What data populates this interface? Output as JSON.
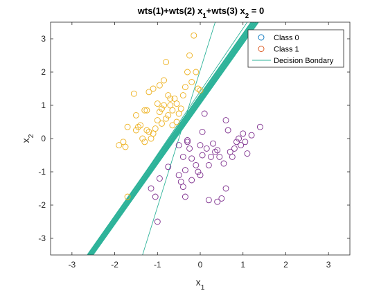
{
  "chart_data": {
    "type": "scatter",
    "title": "wts(1)+wts(2) x_1+wts(3) x_2 = 0",
    "xlabel": "x_1",
    "ylabel": "x_2",
    "xlim": [
      -3.5,
      3.5
    ],
    "ylim": [
      -3.5,
      3.5
    ],
    "xticks": [
      -3,
      -2,
      -1,
      0,
      1,
      2,
      3
    ],
    "yticks": [
      -3,
      -2,
      -1,
      0,
      1,
      2,
      3
    ],
    "grid": false,
    "legend_placement": "top-right",
    "legend": [
      "Class 0",
      "Class 1",
      "Decision Bondary"
    ],
    "legend_colors": [
      "#0072BD",
      "#D95319",
      "#2EB39A"
    ],
    "series": [
      {
        "name": "Class 0",
        "marker": "circle",
        "color": "#7E2F8E",
        "points": [
          [
            -0.75,
            -0.85
          ],
          [
            -0.95,
            -1.2
          ],
          [
            -1.15,
            -1.5
          ],
          [
            -1.05,
            -1.75
          ],
          [
            -1.0,
            -2.5
          ],
          [
            -0.5,
            -0.2
          ],
          [
            -0.4,
            -0.55
          ],
          [
            -0.35,
            -0.95
          ],
          [
            -0.5,
            -1.1
          ],
          [
            -0.45,
            -1.3
          ],
          [
            -0.4,
            -1.45
          ],
          [
            -0.35,
            -1.75
          ],
          [
            -0.3,
            -0.1
          ],
          [
            -0.25,
            -0.3
          ],
          [
            -0.2,
            -0.6
          ],
          [
            -0.1,
            -0.8
          ],
          [
            -0.05,
            -1.0
          ],
          [
            0.0,
            -1.1
          ],
          [
            0.0,
            -0.2
          ],
          [
            0.05,
            0.2
          ],
          [
            0.1,
            0.75
          ],
          [
            0.15,
            -0.3
          ],
          [
            0.2,
            -0.8
          ],
          [
            0.3,
            -0.15
          ],
          [
            0.35,
            -0.4
          ],
          [
            0.45,
            -0.55
          ],
          [
            0.55,
            -0.75
          ],
          [
            0.6,
            0.55
          ],
          [
            0.65,
            0.25
          ],
          [
            0.7,
            -0.4
          ],
          [
            0.75,
            -0.55
          ],
          [
            0.8,
            -0.3
          ],
          [
            0.85,
            -0.1
          ],
          [
            0.9,
            0.0
          ],
          [
            0.95,
            -0.2
          ],
          [
            1.0,
            0.15
          ],
          [
            1.05,
            -0.1
          ],
          [
            1.1,
            -0.45
          ],
          [
            1.2,
            0.1
          ],
          [
            1.4,
            0.35
          ],
          [
            0.2,
            -1.85
          ],
          [
            0.4,
            -1.9
          ],
          [
            0.5,
            -1.8
          ],
          [
            0.6,
            -1.5
          ],
          [
            -0.2,
            -1.25
          ],
          [
            0.05,
            -0.5
          ],
          [
            -0.3,
            -0.05
          ],
          [
            0.25,
            -0.55
          ],
          [
            0.4,
            -0.35
          ]
        ]
      },
      {
        "name": "Class 1",
        "marker": "circle",
        "color": "#EDB120",
        "points": [
          [
            -1.9,
            -0.2
          ],
          [
            -1.8,
            -0.1
          ],
          [
            -1.75,
            -0.25
          ],
          [
            -1.7,
            0.35
          ],
          [
            -1.5,
            0.25
          ],
          [
            -1.45,
            0.35
          ],
          [
            -1.4,
            0.4
          ],
          [
            -1.35,
            0.0
          ],
          [
            -1.3,
            -0.1
          ],
          [
            -1.25,
            0.25
          ],
          [
            -1.2,
            0.2
          ],
          [
            -1.15,
            0.0
          ],
          [
            -1.1,
            0.15
          ],
          [
            -1.05,
            0.3
          ],
          [
            -1.0,
            0.55
          ],
          [
            -0.95,
            0.8
          ],
          [
            -0.9,
            0.9
          ],
          [
            -0.85,
            1.0
          ],
          [
            -0.8,
            0.6
          ],
          [
            -0.75,
            1.3
          ],
          [
            -0.7,
            1.0
          ],
          [
            -0.65,
            0.85
          ],
          [
            -0.6,
            1.2
          ],
          [
            -0.5,
            0.75
          ],
          [
            -0.45,
            0.9
          ],
          [
            -0.4,
            1.3
          ],
          [
            -0.35,
            1.55
          ],
          [
            -0.3,
            2.0
          ],
          [
            -0.25,
            2.5
          ],
          [
            -0.2,
            1.7
          ],
          [
            -0.1,
            2.0
          ],
          [
            -0.05,
            1.5
          ],
          [
            0.0,
            1.45
          ],
          [
            -1.55,
            1.35
          ],
          [
            -1.5,
            0.7
          ],
          [
            -1.2,
            1.4
          ],
          [
            -1.1,
            1.5
          ],
          [
            -0.95,
            1.6
          ],
          [
            -0.85,
            1.75
          ],
          [
            -0.8,
            2.3
          ],
          [
            -0.7,
            1.2
          ],
          [
            -1.25,
            0.85
          ],
          [
            -1.0,
            1.05
          ],
          [
            -1.7,
            -1.75
          ],
          [
            -0.55,
            0.5
          ],
          [
            -0.9,
            0.45
          ],
          [
            -0.75,
            0.7
          ],
          [
            -0.55,
            1.05
          ],
          [
            -0.15,
            3.1
          ],
          [
            -0.65,
            0.4
          ],
          [
            -1.3,
            0.85
          ]
        ]
      }
    ],
    "decision_boundaries": [
      {
        "x": [
          -2.63,
          1.2
        ],
        "y": [
          -3.5,
          3.5
        ],
        "color": "#2EB39A",
        "emphasis": "bold"
      },
      {
        "x": [
          -2.58,
          1.25
        ],
        "y": [
          -3.5,
          3.5
        ],
        "color": "#2EB39A",
        "emphasis": "bold"
      },
      {
        "x": [
          -2.55,
          1.3
        ],
        "y": [
          -3.5,
          3.5
        ],
        "color": "#2EB39A",
        "emphasis": "bold"
      },
      {
        "x": [
          -2.52,
          1.35
        ],
        "y": [
          -3.5,
          3.5
        ],
        "color": "#2EB39A",
        "emphasis": "bold"
      },
      {
        "x": [
          -2.6,
          1.1
        ],
        "y": [
          -3.5,
          3.5
        ],
        "color": "#2EB39A",
        "emphasis": "thin"
      },
      {
        "x": [
          -1.35,
          0.35
        ],
        "y": [
          -3.5,
          3.5
        ],
        "color": "#2EB39A",
        "emphasis": "thin"
      }
    ]
  }
}
